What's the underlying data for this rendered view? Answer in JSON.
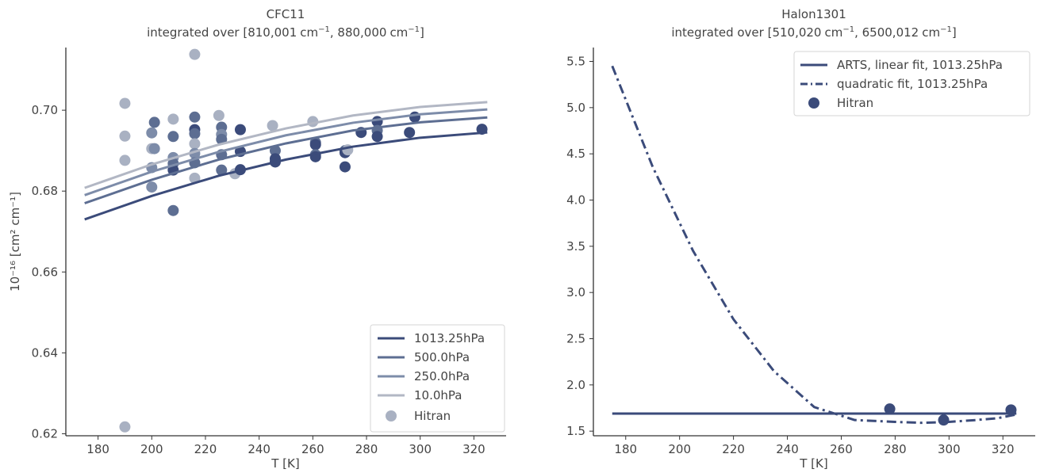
{
  "chart_data": [
    {
      "type": "scatter",
      "title": "CFC11",
      "subtitle_pre": "integrated over [810,001",
      "subtitle_mid": ", 880,000",
      "subtitle_post": "]",
      "unit_base": "cm",
      "unit_exp": "−1",
      "xlabel": "T [K]",
      "ylabel": "10⁻¹⁶ [cm² cm⁻¹]",
      "xlim": [
        168,
        332
      ],
      "ylim": [
        0.6195,
        0.7155
      ],
      "xticks": [
        180,
        200,
        220,
        240,
        260,
        280,
        300,
        320
      ],
      "yticks": [
        0.62,
        0.64,
        0.66,
        0.68,
        0.7
      ],
      "ytick_labels": [
        "0.62",
        "0.64",
        "0.66",
        "0.68",
        "0.70"
      ],
      "legend_position": "lower-right",
      "colors": {
        "1013.25hPa": "#3b4b7a",
        "500.0hPa": "#5d6e92",
        "250.0hPa": "#7d8ca9",
        "10.0hPa": "#b2b7c4",
        "Hitran": "#a9b1c2"
      },
      "series": [
        {
          "name": "1013.25hPa",
          "x": [
            175,
            200,
            225,
            250,
            275,
            300,
            325
          ],
          "y": [
            0.673,
            0.6788,
            0.6838,
            0.6878,
            0.691,
            0.6932,
            0.6945
          ]
        },
        {
          "name": "500.0hPa",
          "x": [
            175,
            200,
            225,
            250,
            275,
            300,
            325
          ],
          "y": [
            0.677,
            0.6828,
            0.6878,
            0.6918,
            0.695,
            0.697,
            0.6982
          ]
        },
        {
          "name": "250.0hPa",
          "x": [
            175,
            200,
            225,
            250,
            275,
            300,
            325
          ],
          "y": [
            0.679,
            0.6848,
            0.6897,
            0.6938,
            0.6969,
            0.699,
            0.7002
          ]
        },
        {
          "name": "10.0hPa",
          "x": [
            175,
            200,
            225,
            250,
            275,
            300,
            325
          ],
          "y": [
            0.6808,
            0.6866,
            0.6915,
            0.6955,
            0.6987,
            0.7008,
            0.702
          ]
        }
      ],
      "scatter": {
        "name": "Hitran",
        "points": [
          [
            190,
            0.7017,
            4
          ],
          [
            190,
            0.6936,
            4
          ],
          [
            190,
            0.6876,
            4
          ],
          [
            190,
            0.6217,
            4
          ],
          [
            200,
            0.6944,
            3
          ],
          [
            200,
            0.6905,
            4
          ],
          [
            200,
            0.6858,
            3
          ],
          [
            200,
            0.681,
            3
          ],
          [
            201,
            0.697,
            2
          ],
          [
            201,
            0.6905,
            3
          ],
          [
            208,
            0.6978,
            4
          ],
          [
            208,
            0.6935,
            2
          ],
          [
            208,
            0.6883,
            3
          ],
          [
            208,
            0.6868,
            2
          ],
          [
            208,
            0.6852,
            1
          ],
          [
            208,
            0.6752,
            2
          ],
          [
            216,
            0.7138,
            4
          ],
          [
            216,
            0.6983,
            2
          ],
          [
            216,
            0.6952,
            1
          ],
          [
            216,
            0.6942,
            2
          ],
          [
            216,
            0.6917,
            4
          ],
          [
            216,
            0.6893,
            3
          ],
          [
            216,
            0.687,
            2
          ],
          [
            216,
            0.6832,
            4
          ],
          [
            225,
            0.6987,
            4
          ],
          [
            226,
            0.6958,
            2
          ],
          [
            226,
            0.694,
            3
          ],
          [
            226,
            0.6928,
            2
          ],
          [
            226,
            0.689,
            2
          ],
          [
            226,
            0.6852,
            2
          ],
          [
            231,
            0.6843,
            4
          ],
          [
            233,
            0.6952,
            1
          ],
          [
            233,
            0.6898,
            1
          ],
          [
            233,
            0.6853,
            1
          ],
          [
            245,
            0.6962,
            4
          ],
          [
            246,
            0.69,
            2
          ],
          [
            246,
            0.688,
            1
          ],
          [
            246,
            0.6872,
            1
          ],
          [
            260,
            0.6972,
            4
          ],
          [
            261,
            0.692,
            2
          ],
          [
            261,
            0.6915,
            1
          ],
          [
            261,
            0.689,
            2
          ],
          [
            261,
            0.6885,
            1
          ],
          [
            272,
            0.69,
            2
          ],
          [
            272,
            0.6895,
            1
          ],
          [
            272,
            0.686,
            1
          ],
          [
            273,
            0.6902,
            4
          ],
          [
            278,
            0.6945,
            1
          ],
          [
            284,
            0.6972,
            1
          ],
          [
            284,
            0.695,
            2
          ],
          [
            284,
            0.6935,
            1
          ],
          [
            296,
            0.6945,
            1
          ],
          [
            298,
            0.6983,
            1
          ],
          [
            323,
            0.6953,
            1
          ]
        ]
      },
      "legend": [
        "1013.25hPa",
        "500.0hPa",
        "250.0hPa",
        "10.0hPa",
        "Hitran"
      ]
    },
    {
      "type": "line",
      "title": "Halon1301",
      "subtitle_pre": "integrated over [510,020",
      "subtitle_mid": ", 6500,012",
      "subtitle_post": "]",
      "unit_base": "cm",
      "unit_exp": "−1",
      "xlabel": "T [K]",
      "ylabel": "",
      "xlim": [
        168,
        332
      ],
      "ylim": [
        1.45,
        5.65
      ],
      "xticks": [
        180,
        200,
        220,
        240,
        260,
        280,
        300,
        320
      ],
      "yticks": [
        1.5,
        2.0,
        2.5,
        3.0,
        3.5,
        4.0,
        4.5,
        5.0,
        5.5
      ],
      "ytick_labels": [
        "1.5",
        "2.0",
        "2.5",
        "3.0",
        "3.5",
        "4.0",
        "4.5",
        "5.0",
        "5.5"
      ],
      "legend_position": "upper-right",
      "colors": {
        "line": "#3b4b7a",
        "points": "#3b4b7a"
      },
      "series": [
        {
          "name": "ARTS, linear fit, 1013.25hPa",
          "style": "solid",
          "x": [
            175,
            325
          ],
          "y": [
            1.69,
            1.69
          ]
        },
        {
          "name": "quadratic fit, 1013.25hPa",
          "style": "dashdot",
          "x": [
            175,
            190,
            205,
            220,
            235,
            250,
            265,
            280,
            290,
            300,
            310,
            318,
            325
          ],
          "y": [
            5.45,
            4.36,
            3.45,
            2.71,
            2.15,
            1.76,
            1.62,
            1.6,
            1.59,
            1.6,
            1.62,
            1.64,
            1.68
          ]
        }
      ],
      "scatter": {
        "name": "Hitran",
        "points": [
          [
            278,
            1.74,
            1
          ],
          [
            298,
            1.62,
            1
          ],
          [
            323,
            1.73,
            1
          ]
        ]
      },
      "legend": [
        "ARTS, linear fit, 1013.25hPa",
        "quadratic fit, 1013.25hPa",
        "Hitran"
      ]
    }
  ]
}
